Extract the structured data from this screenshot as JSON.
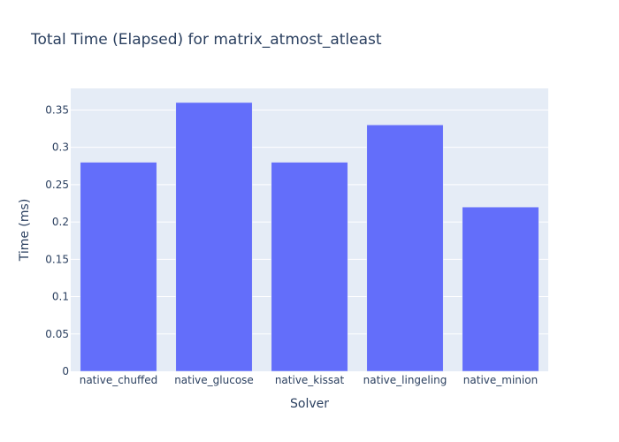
{
  "chart_data": {
    "type": "bar",
    "title": "Total Time (Elapsed) for matrix_atmost_atleast",
    "xlabel": "Solver",
    "ylabel": "Time (ms)",
    "categories": [
      "native_chuffed",
      "native_glucose",
      "native_kissat",
      "native_lingeling",
      "native_minion"
    ],
    "values": [
      0.28,
      0.36,
      0.28,
      0.33,
      0.22
    ],
    "ylim": [
      0,
      0.3789
    ],
    "yticks": [
      0,
      0.05,
      0.1,
      0.15,
      0.2,
      0.25,
      0.3,
      0.35
    ],
    "ytick_labels": [
      "0",
      "0.05",
      "0.1",
      "0.15",
      "0.2",
      "0.25",
      "0.3",
      "0.35"
    ],
    "grid": true,
    "colors": {
      "bar": "#636efa",
      "plot_background": "#e5ecf6",
      "grid": "#ffffff",
      "text": "#2a3f5f"
    }
  }
}
